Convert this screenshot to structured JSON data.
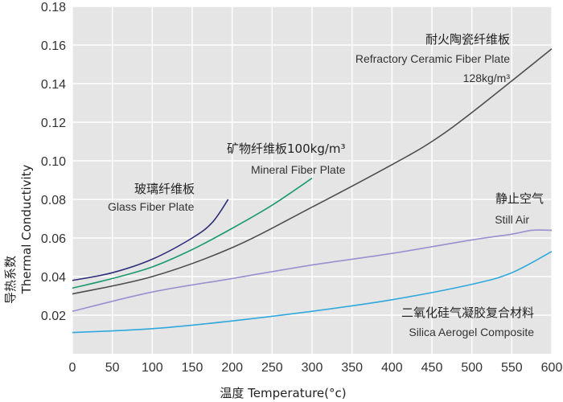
{
  "chart_data": {
    "type": "line",
    "xlabel": "温度 Temperature(°c)",
    "ylabel_zh": "导热系数",
    "ylabel_en": "Thermal Conductivity",
    "xlim": [
      0,
      600
    ],
    "ylim": [
      0,
      0.18
    ],
    "x_ticks": [
      "0",
      "50",
      "100",
      "150",
      "200",
      "250",
      "300",
      "350",
      "400",
      "450",
      "500",
      "550",
      "600"
    ],
    "y_ticks": [
      "0.02",
      "0.04",
      "0.06",
      "0.08",
      "0.10",
      "0.12",
      "0.14",
      "0.16",
      "0.18"
    ],
    "grid": true,
    "background": "#e5e5e5",
    "series": [
      {
        "name_zh": "耐火陶瓷纤维板",
        "name_en": "Refractory Ceramic Fiber Plate",
        "name_extra": "128kg/m³",
        "color": "#4d4d4d",
        "x": [
          0,
          100,
          200,
          300,
          400,
          450,
          500,
          600
        ],
        "y": [
          0.031,
          0.04,
          0.055,
          0.076,
          0.098,
          0.11,
          0.125,
          0.158
        ]
      },
      {
        "name_zh": "矿物纤维板100kg/m³",
        "name_en": "Mineral Fiber Plate",
        "color": "#1a9a6c",
        "x": [
          0,
          50,
          100,
          150,
          200,
          250,
          300
        ],
        "y": [
          0.034,
          0.039,
          0.045,
          0.054,
          0.065,
          0.077,
          0.091
        ]
      },
      {
        "name_zh": "玻璃纤维板",
        "name_en": "Glass Fiber Plate",
        "color": "#2e2e7a",
        "x": [
          0,
          50,
          100,
          150,
          175,
          195
        ],
        "y": [
          0.038,
          0.042,
          0.049,
          0.06,
          0.068,
          0.08
        ]
      },
      {
        "name_zh": "静止空气",
        "name_en": "Still Air",
        "color": "#9a8fcf",
        "x": [
          0,
          100,
          200,
          300,
          400,
          500,
          550,
          575,
          600
        ],
        "y": [
          0.022,
          0.032,
          0.039,
          0.046,
          0.052,
          0.059,
          0.062,
          0.064,
          0.064
        ]
      },
      {
        "name_zh": "二氧化硅气凝胶复合材料",
        "name_en": "Silica Aerogel Composite",
        "color": "#2ea8dc",
        "x": [
          0,
          100,
          200,
          300,
          400,
          500,
          550,
          600
        ],
        "y": [
          0.011,
          0.013,
          0.017,
          0.022,
          0.028,
          0.036,
          0.042,
          0.053
        ]
      }
    ]
  }
}
